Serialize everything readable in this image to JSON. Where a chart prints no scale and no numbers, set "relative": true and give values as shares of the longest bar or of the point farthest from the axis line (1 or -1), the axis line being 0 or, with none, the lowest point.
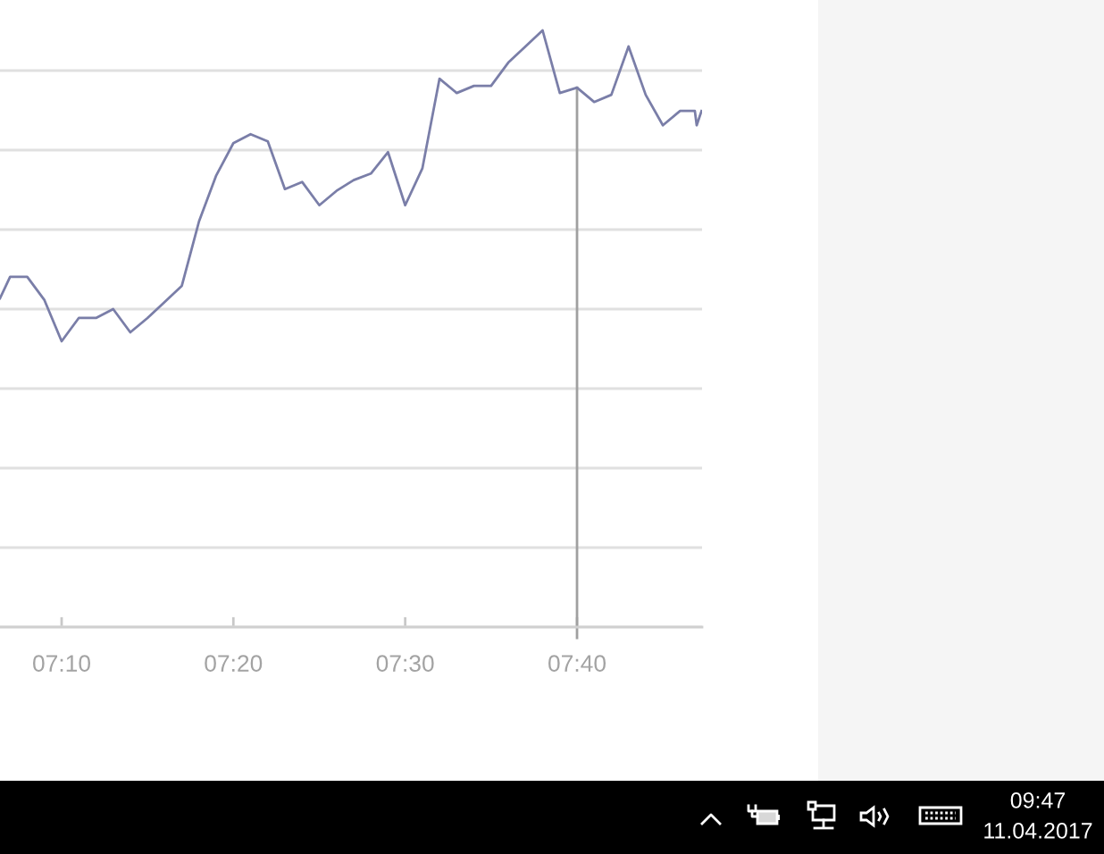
{
  "chart_data": {
    "type": "line",
    "relative": true,
    "grid": "y",
    "x": [
      7.1069,
      7.1167,
      7.1333,
      7.15,
      7.1667,
      7.1833,
      7.2,
      7.2167,
      7.2333,
      7.25,
      7.2667,
      7.2833,
      7.3,
      7.3167,
      7.3333,
      7.35,
      7.3667,
      7.3833,
      7.4,
      7.4167,
      7.4333,
      7.45,
      7.4667,
      7.4833,
      7.5,
      7.5167,
      7.5333,
      7.55,
      7.5667,
      7.5833,
      7.6,
      7.6167,
      7.6333,
      7.65,
      7.6667,
      7.6833,
      7.7,
      7.7167,
      7.7333,
      7.75,
      7.7667,
      7.781,
      7.7828,
      7.7875
    ],
    "series": [
      {
        "color": "#7a7ea8",
        "values": [
          0.551,
          0.587,
          0.587,
          0.548,
          0.479,
          0.518,
          0.518,
          0.533,
          0.494,
          0.518,
          0.545,
          0.572,
          0.68,
          0.757,
          0.811,
          0.826,
          0.814,
          0.734,
          0.746,
          0.707,
          0.731,
          0.749,
          0.76,
          0.796,
          0.707,
          0.769,
          0.919,
          0.895,
          0.907,
          0.907,
          0.946,
          0.973,
          1.0,
          0.895,
          0.904,
          0.88,
          0.892,
          0.973,
          0.892,
          0.841,
          0.865,
          0.865,
          0.841,
          0.865
        ]
      }
    ],
    "xlim": [
      7.1069,
      7.788
    ],
    "xticks": [
      {
        "value": 7.1667,
        "label": "07:10"
      },
      {
        "value": 7.3333,
        "label": "07:20"
      },
      {
        "value": 7.5,
        "label": "07:30"
      },
      {
        "value": 7.6667,
        "label": "07:40"
      }
    ],
    "ref_lines": [
      {
        "axis": "x",
        "value": 7.6667,
        "color": "#a0a0a0"
      }
    ],
    "annotations": [
      "09:47",
      "11.04.2017"
    ]
  }
}
